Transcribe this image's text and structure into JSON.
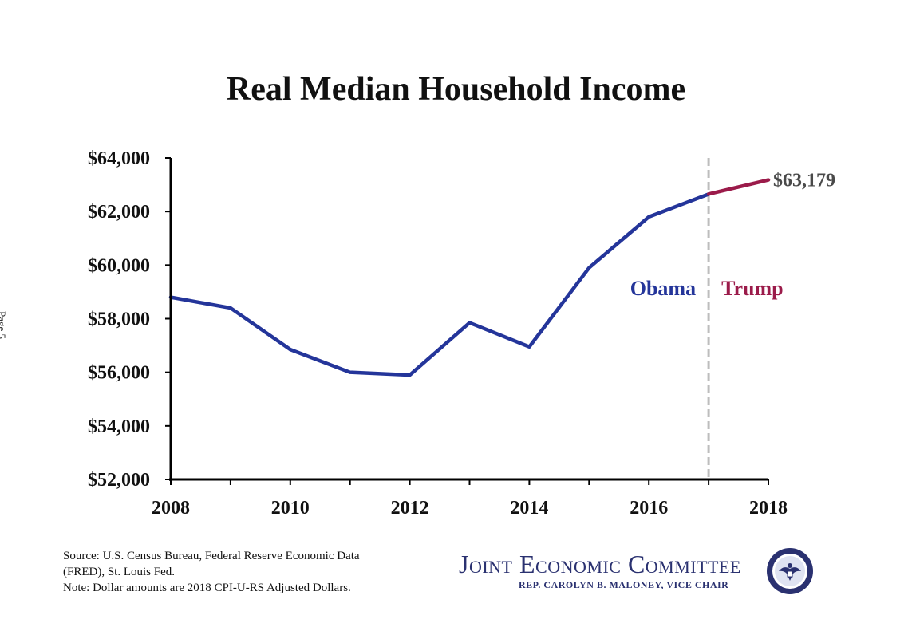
{
  "page": {
    "side_mark": "Page 5"
  },
  "chart_data": {
    "type": "line",
    "title": "Real Median Household Income",
    "xlabel": "",
    "ylabel": "",
    "x_ticks": [
      "2008",
      "2010",
      "2012",
      "2014",
      "2016",
      "2018"
    ],
    "y_ticks": [
      "$64,000",
      "$62,000",
      "$60,000",
      "$58,000",
      "$56,000",
      "$54,000",
      "$52,000"
    ],
    "ylim": [
      52000,
      64000
    ],
    "xlim": [
      2008,
      2018
    ],
    "series": [
      {
        "name": "Obama",
        "color": "#24359a",
        "x": [
          2008,
          2009,
          2010,
          2011,
          2012,
          2013,
          2014,
          2015,
          2016,
          2017
        ],
        "values": [
          58800,
          58400,
          56850,
          56000,
          55900,
          57850,
          56950,
          59900,
          61800,
          62650
        ]
      },
      {
        "name": "Trump",
        "color": "#9b1b4a",
        "x": [
          2017,
          2018
        ],
        "values": [
          62650,
          63179
        ]
      }
    ],
    "divider": {
      "x": 2017,
      "style": "dashed",
      "color": "#bdbdbd"
    },
    "annotations": {
      "end_value": "$63,179",
      "obama_label": "Obama",
      "trump_label": "Trump"
    }
  },
  "footer": {
    "source_line1": "Source: U.S. Census Bureau, Federal Reserve Economic Data",
    "source_line2": "(FRED), St. Louis Fed.",
    "note": "Note: Dollar amounts are 2018 CPI-U-RS Adjusted Dollars.",
    "logo_title": "Joint Economic Committee",
    "logo_subtitle": "REP. CAROLYN B. MALONEY, VICE CHAIR",
    "seal_icon": "congress-seal-icon"
  }
}
